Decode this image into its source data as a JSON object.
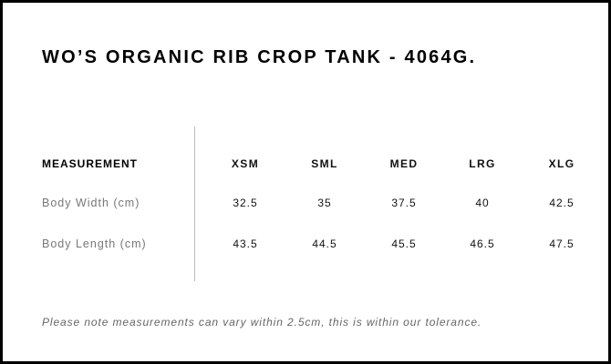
{
  "title": "WO’S ORGANIC RIB CROP TANK - 4064G.",
  "table": {
    "header_label": "MEASUREMENT",
    "sizes": [
      "XSM",
      "SML",
      "MED",
      "LRG",
      "XLG"
    ],
    "rows": [
      {
        "label": "Body Width (cm)",
        "values": [
          "32.5",
          "35",
          "37.5",
          "40",
          "42.5"
        ]
      },
      {
        "label": "Body Length (cm)",
        "values": [
          "43.5",
          "44.5",
          "45.5",
          "46.5",
          "47.5"
        ]
      }
    ]
  },
  "note": "Please note measurements can vary within 2.5cm, this is within our tolerance."
}
